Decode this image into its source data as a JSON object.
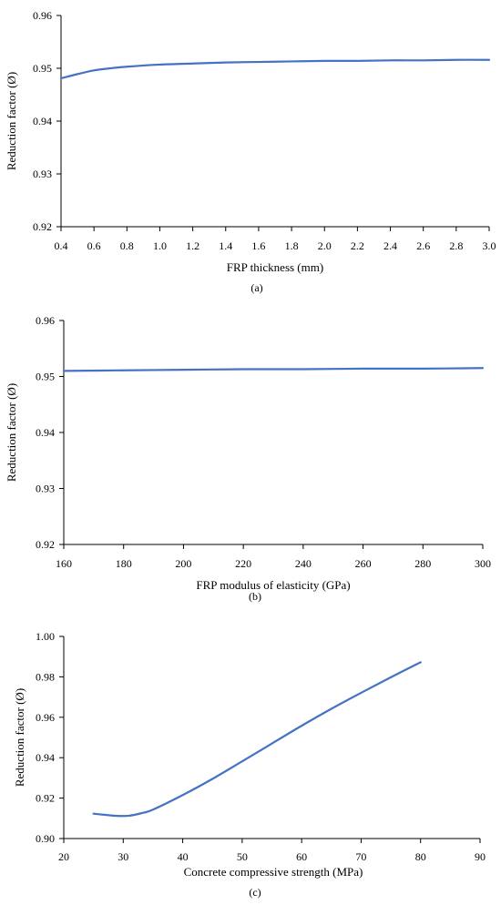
{
  "colors": {
    "series": "#4472C4",
    "axis": "#000000"
  },
  "chart_data": [
    {
      "type": "line",
      "panel_label": "(a)",
      "xlabel": "FRP thickness (mm)",
      "ylabel": "Reduction factor (Ø)",
      "xlim": [
        0.4,
        3.0
      ],
      "ylim": [
        0.92,
        0.96
      ],
      "xticks": [
        "0.4",
        "0.6",
        "0.8",
        "1.0",
        "1.2",
        "1.4",
        "1.6",
        "1.8",
        "2.0",
        "2.2",
        "2.4",
        "2.6",
        "2.8",
        "3.0"
      ],
      "yticks": [
        "0.92",
        "0.93",
        "0.94",
        "0.95",
        "0.96"
      ],
      "grid": false,
      "series": [
        {
          "x": [
            0.4,
            0.5,
            0.6,
            0.7,
            0.8,
            1.0,
            1.2,
            1.4,
            1.6,
            1.8,
            2.0,
            2.2,
            2.4,
            2.6,
            2.8,
            3.0
          ],
          "y": [
            0.9481,
            0.9489,
            0.9496,
            0.95,
            0.9503,
            0.9507,
            0.9509,
            0.9511,
            0.9512,
            0.9513,
            0.9514,
            0.9514,
            0.9515,
            0.9515,
            0.9516,
            0.9516
          ]
        }
      ]
    },
    {
      "type": "line",
      "panel_label": "(b)",
      "xlabel": "FRP modulus of elasticity (GPa)",
      "ylabel": "Reduction factor (Ø)",
      "xlim": [
        160,
        300
      ],
      "ylim": [
        0.92,
        0.96
      ],
      "xticks": [
        "160",
        "180",
        "200",
        "220",
        "240",
        "260",
        "280",
        "300"
      ],
      "yticks": [
        "0.92",
        "0.93",
        "0.94",
        "0.95",
        "0.96"
      ],
      "grid": false,
      "series": [
        {
          "x": [
            160,
            180,
            200,
            220,
            240,
            260,
            280,
            300
          ],
          "y": [
            0.951,
            0.9511,
            0.9512,
            0.9513,
            0.9513,
            0.9514,
            0.9514,
            0.9515
          ]
        }
      ]
    },
    {
      "type": "line",
      "panel_label": "(c)",
      "xlabel": "Concrete compressive strength (MPa)",
      "ylabel": "Reduction factor (Ø)",
      "xlim": [
        20,
        90
      ],
      "ylim": [
        0.9,
        1.0
      ],
      "xticks": [
        "20",
        "30",
        "40",
        "50",
        "60",
        "70",
        "80",
        "90"
      ],
      "yticks": [
        "0.90",
        "0.92",
        "0.94",
        "0.96",
        "0.98",
        "1.00"
      ],
      "grid": false,
      "series": [
        {
          "x": [
            25,
            27,
            29,
            31,
            33,
            35,
            40,
            45,
            50,
            55,
            60,
            65,
            70,
            75,
            80
          ],
          "y": [
            0.9123,
            0.9117,
            0.9112,
            0.9113,
            0.9125,
            0.9143,
            0.9215,
            0.9295,
            0.9382,
            0.947,
            0.9558,
            0.9642,
            0.9721,
            0.9798,
            0.9872
          ]
        }
      ]
    }
  ]
}
